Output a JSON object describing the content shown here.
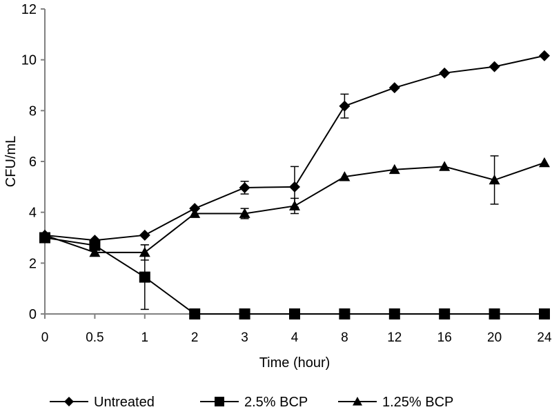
{
  "chart_data": {
    "type": "line",
    "title": "",
    "xlabel": "Time (hour)",
    "ylabel": "CFU/mL",
    "categories": [
      "0",
      "0.5",
      "1",
      "2",
      "3",
      "4",
      "8",
      "12",
      "16",
      "20",
      "24"
    ],
    "yticks": [
      "0",
      "2",
      "4",
      "6",
      "8",
      "10",
      "12"
    ],
    "ylim": [
      0,
      12
    ],
    "grid": false,
    "legend_position": "bottom",
    "series": [
      {
        "name": "Untreated",
        "marker": "diamond",
        "values": [
          3.1,
          2.9,
          3.1,
          4.15,
          4.97,
          5.0,
          8.18,
          8.9,
          9.48,
          9.73,
          10.16
        ],
        "errors": [
          0,
          0,
          0,
          0,
          0.25,
          0.8,
          0.47,
          0,
          0,
          0,
          0
        ]
      },
      {
        "name": "2.5% BCP",
        "marker": "square",
        "values": [
          3.0,
          2.7,
          1.45,
          0,
          0,
          0,
          0,
          0,
          0,
          0,
          0
        ],
        "errors": [
          0,
          0,
          1.27,
          0,
          0,
          0,
          0,
          0,
          0,
          0,
          0
        ]
      },
      {
        "name": "1.25% BCP",
        "marker": "triangle",
        "values": [
          3.1,
          2.42,
          2.42,
          3.95,
          3.95,
          4.25,
          5.4,
          5.68,
          5.8,
          5.27,
          5.95
        ],
        "errors": [
          0,
          0,
          0.3,
          0,
          0.2,
          0.3,
          0,
          0,
          0,
          0.95,
          0
        ]
      }
    ],
    "colors": {
      "line": "#000000",
      "axis": "#808080"
    }
  }
}
